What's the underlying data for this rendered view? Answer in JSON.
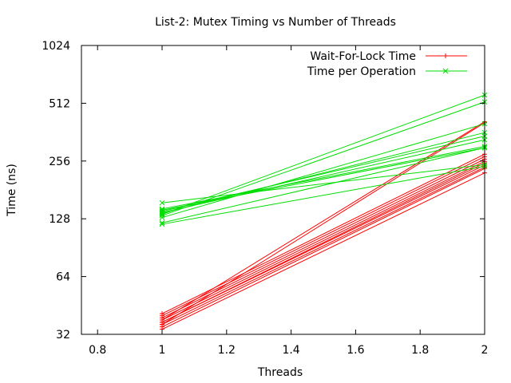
{
  "chart_data": {
    "type": "line",
    "title": "List-2: Mutex Timing vs Number of Threads",
    "xlabel": "Threads",
    "ylabel": "Time (ns)",
    "xlim": [
      0.75,
      2
    ],
    "ylim": [
      32,
      1024
    ],
    "yscale": "log2",
    "xticks": [
      "0.8",
      "1",
      "1.2",
      "1.4",
      "1.6",
      "1.8",
      "2"
    ],
    "xtick_values": [
      0.8,
      1,
      1.2,
      1.4,
      1.6,
      1.8,
      2
    ],
    "yticks": [
      "32",
      "64",
      "128",
      "256",
      "512",
      "1024"
    ],
    "ytick_values": [
      32,
      64,
      128,
      256,
      512,
      1024
    ],
    "grid": false,
    "legend_position": "top-right",
    "series": [
      {
        "name": "Wait-For-Lock Time",
        "color": "#ff0000",
        "marker": "plus",
        "lines": [
          [
            [
              1,
              34
            ],
            [
              2,
              222
            ]
          ],
          [
            [
              1,
              35
            ],
            [
              2,
              234
            ]
          ],
          [
            [
              1,
              36
            ],
            [
              2,
              238
            ]
          ],
          [
            [
              1,
              37
            ],
            [
              2,
              244
            ]
          ],
          [
            [
              1,
              37
            ],
            [
              2,
              250
            ]
          ],
          [
            [
              1,
              38
            ],
            [
              2,
              255
            ]
          ],
          [
            [
              1,
              39
            ],
            [
              2,
              262
            ]
          ],
          [
            [
              1,
              40
            ],
            [
              2,
              270
            ]
          ],
          [
            [
              1,
              41
            ],
            [
              2,
              278
            ]
          ],
          [
            [
              1,
              36
            ],
            [
              2,
              405
            ]
          ],
          [
            [
              1,
              38
            ],
            [
              2,
              410
            ]
          ]
        ]
      },
      {
        "name": "Time per Operation",
        "color": "#00dd00",
        "marker": "cross",
        "lines": [
          [
            [
              1,
              120
            ],
            [
              2,
              240
            ]
          ],
          [
            [
              1,
              122
            ],
            [
              2,
              300
            ]
          ],
          [
            [
              1,
              130
            ],
            [
              2,
              400
            ]
          ],
          [
            [
              1,
              133
            ],
            [
              2,
              520
            ]
          ],
          [
            [
              1,
              135
            ],
            [
              2,
              565
            ]
          ],
          [
            [
              1,
              137
            ],
            [
              2,
              360
            ]
          ],
          [
            [
              1,
              138
            ],
            [
              2,
              330
            ]
          ],
          [
            [
              1,
              140
            ],
            [
              2,
              345
            ]
          ],
          [
            [
              1,
              142
            ],
            [
              2,
              300
            ]
          ],
          [
            [
              1,
              144
            ],
            [
              2,
              305
            ]
          ],
          [
            [
              1,
              155
            ],
            [
              2,
              245
            ]
          ]
        ]
      }
    ]
  }
}
